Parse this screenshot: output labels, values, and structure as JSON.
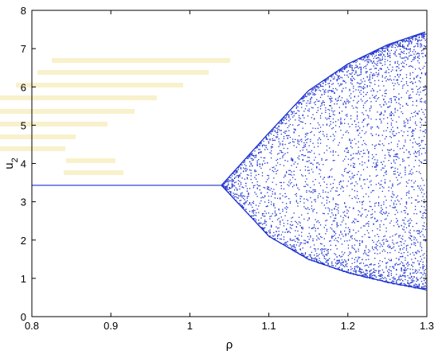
{
  "chart_data": {
    "type": "scatter",
    "title": "",
    "xlabel": "ρ",
    "ylabel": "u",
    "ylabel_subscript": "2",
    "xlim": [
      0.8,
      1.3
    ],
    "ylim": [
      0,
      8
    ],
    "xticks": [
      "0.8",
      "0.9",
      "1",
      "1.1",
      "1.2",
      "1.3"
    ],
    "yticks": [
      "0",
      "1",
      "2",
      "3",
      "4",
      "5",
      "6",
      "7",
      "8"
    ],
    "grid": false,
    "legend": "none",
    "colors": {
      "series": "#1a2fcf",
      "axis": "#000000",
      "watermark": "#f2e6a0"
    },
    "series": [
      {
        "description_values": {
          "fixed_branch": {
            "x": [
              0.8,
              1.04
            ],
            "y": 3.43
          },
          "bifurcation_start_x": 1.04,
          "envelope_upper": [
            [
              1.04,
              3.43
            ],
            [
              1.1,
              4.8
            ],
            [
              1.15,
              5.9
            ],
            [
              1.2,
              6.6
            ],
            [
              1.25,
              7.1
            ],
            [
              1.3,
              7.45
            ]
          ],
          "envelope_lower": [
            [
              1.04,
              3.43
            ],
            [
              1.1,
              2.1
            ],
            [
              1.15,
              1.5
            ],
            [
              1.2,
              1.15
            ],
            [
              1.25,
              0.9
            ],
            [
              1.3,
              0.7
            ]
          ]
        }
      }
    ]
  }
}
